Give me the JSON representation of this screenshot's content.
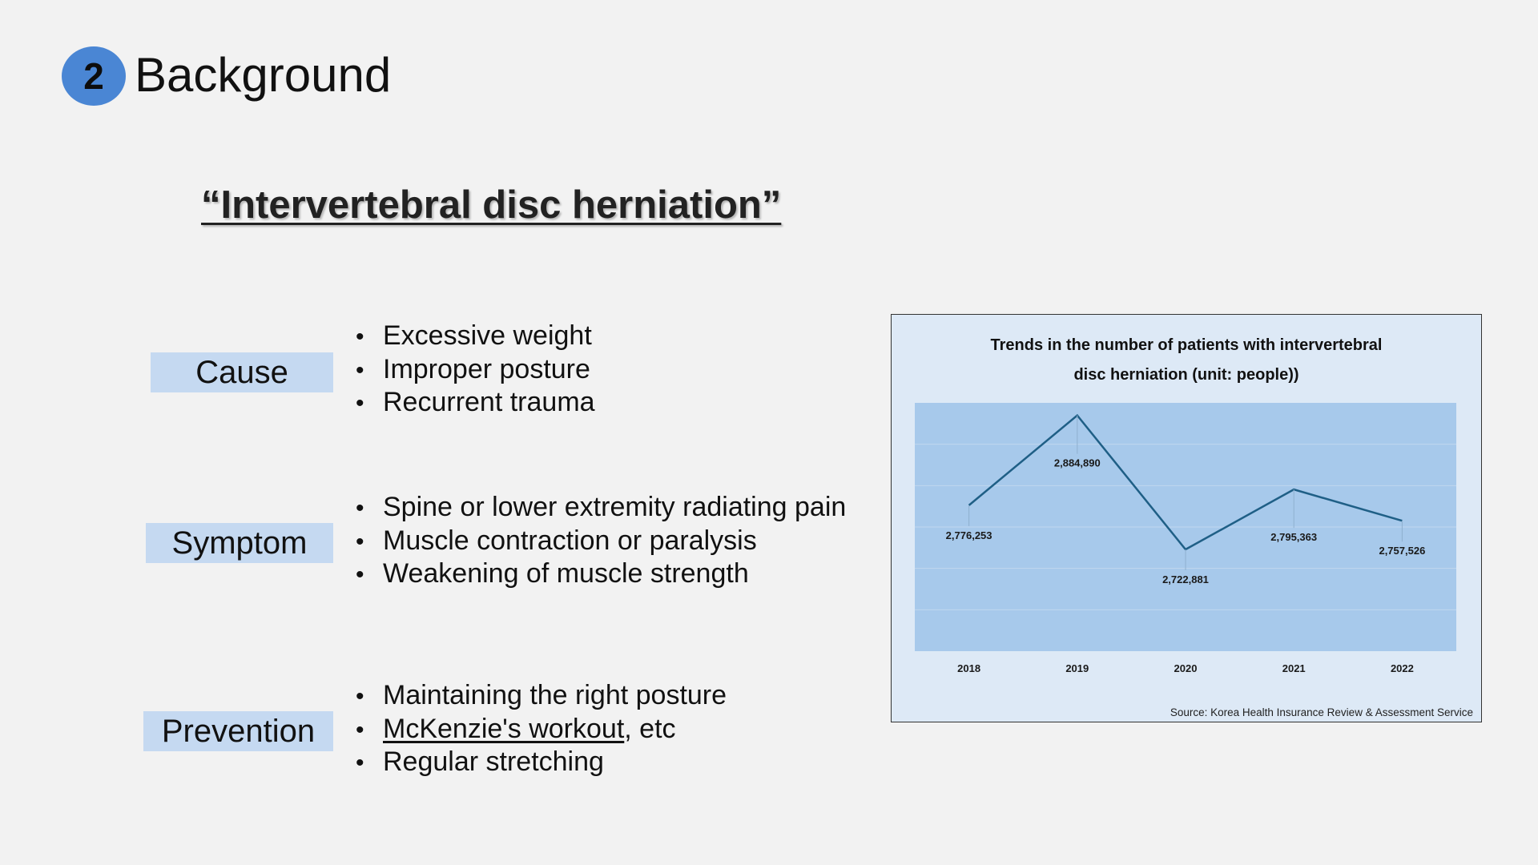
{
  "header": {
    "slide_number": "2",
    "title": "Background"
  },
  "subtitle": "“Intervertebral disc herniation”",
  "sections": [
    {
      "label": "Cause",
      "bullets": [
        "Excessive weight",
        "Improper posture",
        "Recurrent trauma"
      ]
    },
    {
      "label": "Symptom",
      "bullets": [
        "Spine or lower extremity radiating pain",
        "Muscle contraction or paralysis",
        "Weakening of muscle strength"
      ]
    },
    {
      "label": "Prevention",
      "bullets": [
        "Maintaining the right posture",
        "McKenzie's workout, etc",
        "Regular stretching"
      ],
      "bullet_parts": {
        "underlined": "McKenzie's workout",
        "rest": ", etc"
      }
    }
  ],
  "chart": {
    "title_line1": "Trends in the number of patients with intervertebral",
    "title_line2": "disc herniation (unit: people))",
    "source": "Source: Korea Health Insurance Review & Assessment Service"
  },
  "colors": {
    "badge": "#4a86d4",
    "label_bg": "#c5d9f1",
    "chart_bg": "#dde9f6",
    "plot_bg": "#a7c9eb",
    "line": "#1f5f86"
  },
  "chart_data": {
    "type": "line",
    "categories": [
      "2018",
      "2019",
      "2020",
      "2021",
      "2022"
    ],
    "values": [
      2776253,
      2884890,
      2722881,
      2795363,
      2757526
    ],
    "data_labels": [
      "2,776,253",
      "2,884,890",
      "2,722,881",
      "2,795,363",
      "2,757,526"
    ],
    "title": "Trends in the number of patients with intervertebral disc herniation (unit: people))",
    "xlabel": "",
    "ylabel": "",
    "ylim": [
      2600000,
      2900000
    ],
    "grid": true,
    "legend": "none"
  }
}
